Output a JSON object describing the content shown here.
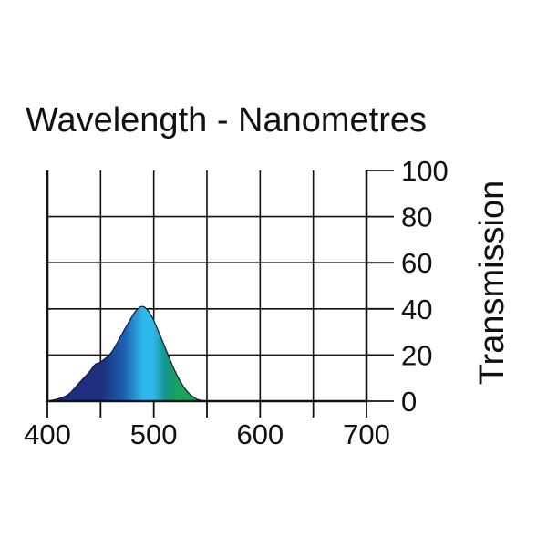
{
  "chart_data": {
    "type": "area",
    "title": "Wavelength - Nanometres",
    "xlabel": "",
    "ylabel": "Transmission",
    "xlim": [
      400,
      700
    ],
    "ylim": [
      0,
      100
    ],
    "xticks": [
      "400",
      "500",
      "600",
      "700"
    ],
    "yticks": [
      "0",
      "20",
      "40",
      "60",
      "80",
      "100"
    ],
    "grid": true,
    "legend": "none",
    "series": [
      {
        "x": [
          400,
          410,
          420,
          430,
          440,
          445,
          450,
          460,
          470,
          480,
          485,
          490,
          495,
          500,
          510,
          520,
          530,
          540,
          550
        ],
        "values": [
          0,
          1,
          3,
          8,
          13,
          16,
          17,
          21,
          29,
          37,
          40,
          41,
          39,
          35,
          24,
          13,
          5,
          1,
          0
        ]
      }
    ],
    "colors": {
      "deep_blue": "#1d2f7e",
      "blue": "#1f5fb0",
      "cyan": "#2fb8ea",
      "teal": "#13948c",
      "green": "#1aa45a",
      "axis": "#111111"
    }
  }
}
